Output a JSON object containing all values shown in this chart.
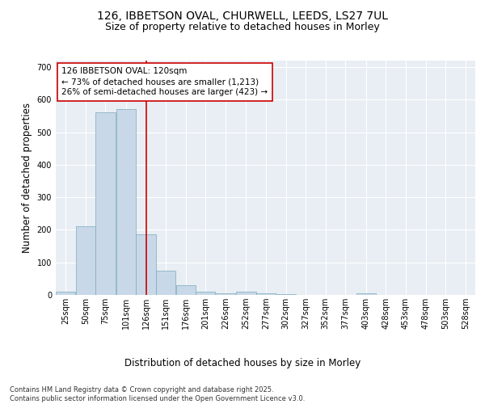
{
  "title_line1": "126, IBBETSON OVAL, CHURWELL, LEEDS, LS27 7UL",
  "title_line2": "Size of property relative to detached houses in Morley",
  "xlabel": "Distribution of detached houses by size in Morley",
  "ylabel": "Number of detached properties",
  "bar_color": "#c8d8e8",
  "bar_edge_color": "#7aaabb",
  "background_color": "#e8eef4",
  "grid_color": "#ffffff",
  "red_line_color": "#cc0000",
  "annotation_text": "126 IBBETSON OVAL: 120sqm\n← 73% of detached houses are smaller (1,213)\n26% of semi-detached houses are larger (423) →",
  "bar_heights": [
    10,
    210,
    560,
    570,
    185,
    75,
    30,
    10,
    5,
    10,
    5,
    2,
    0,
    0,
    0,
    5,
    0,
    0,
    0,
    0,
    0
  ],
  "bin_left_edges": [
    25,
    50,
    75,
    101,
    126,
    151,
    176,
    201,
    226,
    252,
    277,
    302,
    327,
    352,
    377,
    403,
    428,
    453,
    478,
    503,
    528
  ],
  "bin_width": 25,
  "tick_labels": [
    "25sqm",
    "50sqm",
    "75sqm",
    "101sqm",
    "126sqm",
    "151sqm",
    "176sqm",
    "201sqm",
    "226sqm",
    "252sqm",
    "277sqm",
    "302sqm",
    "327sqm",
    "352sqm",
    "377sqm",
    "403sqm",
    "428sqm",
    "453sqm",
    "478sqm",
    "503sqm",
    "528sqm"
  ],
  "ylim": [
    0,
    720
  ],
  "yticks": [
    0,
    100,
    200,
    300,
    400,
    500,
    600,
    700
  ],
  "red_line_bin_index": 4,
  "footnote": "Contains HM Land Registry data © Crown copyright and database right 2025.\nContains public sector information licensed under the Open Government Licence v3.0.",
  "title_fontsize": 10,
  "subtitle_fontsize": 9,
  "axis_label_fontsize": 8.5,
  "tick_fontsize": 7,
  "annotation_fontsize": 7.5,
  "footnote_fontsize": 6
}
